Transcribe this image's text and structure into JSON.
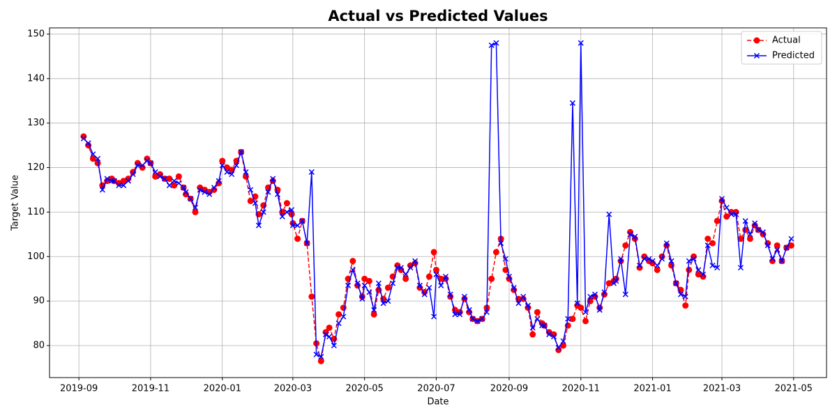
{
  "chart_data": {
    "type": "line",
    "title": "Actual vs Predicted Values",
    "xlabel": "Date",
    "ylabel": "Target Value",
    "x": [
      "2019-09-05",
      "2019-09-09",
      "2019-09-13",
      "2019-09-17",
      "2019-09-21",
      "2019-09-25",
      "2019-09-29",
      "2019-10-01",
      "2019-10-05",
      "2019-10-09",
      "2019-10-13",
      "2019-10-17",
      "2019-10-21",
      "2019-10-25",
      "2019-10-29",
      "2019-11-01",
      "2019-11-05",
      "2019-11-09",
      "2019-11-13",
      "2019-11-17",
      "2019-11-21",
      "2019-11-25",
      "2019-11-29",
      "2019-12-01",
      "2019-12-05",
      "2019-12-09",
      "2019-12-13",
      "2019-12-17",
      "2019-12-21",
      "2019-12-25",
      "2019-12-29",
      "2020-01-01",
      "2020-01-05",
      "2020-01-09",
      "2020-01-13",
      "2020-01-17",
      "2020-01-21",
      "2020-01-25",
      "2020-01-29",
      "2020-02-01",
      "2020-02-05",
      "2020-02-09",
      "2020-02-13",
      "2020-02-17",
      "2020-02-21",
      "2020-02-25",
      "2020-02-29",
      "2020-03-01",
      "2020-03-05",
      "2020-03-09",
      "2020-03-13",
      "2020-03-17",
      "2020-03-21",
      "2020-03-25",
      "2020-03-29",
      "2020-04-01",
      "2020-04-05",
      "2020-04-09",
      "2020-04-13",
      "2020-04-17",
      "2020-04-21",
      "2020-04-25",
      "2020-04-29",
      "2020-05-01",
      "2020-05-05",
      "2020-05-09",
      "2020-05-13",
      "2020-05-17",
      "2020-05-21",
      "2020-05-25",
      "2020-05-29",
      "2020-06-01",
      "2020-06-05",
      "2020-06-09",
      "2020-06-13",
      "2020-06-17",
      "2020-06-21",
      "2020-06-25",
      "2020-06-29",
      "2020-07-01",
      "2020-07-05",
      "2020-07-09",
      "2020-07-13",
      "2020-07-17",
      "2020-07-21",
      "2020-07-25",
      "2020-07-29",
      "2020-08-01",
      "2020-08-05",
      "2020-08-09",
      "2020-08-13",
      "2020-08-17",
      "2020-08-21",
      "2020-08-25",
      "2020-08-29",
      "2020-09-01",
      "2020-09-05",
      "2020-09-09",
      "2020-09-13",
      "2020-09-17",
      "2020-09-21",
      "2020-09-25",
      "2020-09-29",
      "2020-10-01",
      "2020-10-05",
      "2020-10-09",
      "2020-10-13",
      "2020-10-17",
      "2020-10-21",
      "2020-10-25",
      "2020-10-29",
      "2020-11-01",
      "2020-11-05",
      "2020-11-09",
      "2020-11-13",
      "2020-11-17",
      "2020-11-21",
      "2020-11-25",
      "2020-11-29",
      "2020-12-01",
      "2020-12-05",
      "2020-12-09",
      "2020-12-13",
      "2020-12-17",
      "2020-12-21",
      "2020-12-25",
      "2020-12-29",
      "2021-01-01",
      "2021-01-05",
      "2021-01-09",
      "2021-01-13",
      "2021-01-17",
      "2021-01-21",
      "2021-01-25",
      "2021-01-29",
      "2021-02-01",
      "2021-02-05",
      "2021-02-09",
      "2021-02-13",
      "2021-02-17",
      "2021-02-21",
      "2021-02-25",
      "2021-03-01",
      "2021-03-05",
      "2021-03-09",
      "2021-03-13",
      "2021-03-17",
      "2021-03-21",
      "2021-03-25",
      "2021-03-29",
      "2021-04-01",
      "2021-04-05",
      "2021-04-09",
      "2021-04-13",
      "2021-04-17",
      "2021-04-21",
      "2021-04-25",
      "2021-04-29"
    ],
    "series": [
      {
        "name": "Actual",
        "color": "#ff0000",
        "marker": "o",
        "linestyle": "dashed",
        "values": [
          127,
          125,
          122,
          121,
          116,
          117,
          117.5,
          117,
          116.5,
          117,
          117.5,
          119,
          121,
          120,
          122,
          121,
          118,
          118.5,
          117.5,
          117.5,
          116,
          118,
          115.5,
          114,
          113,
          110,
          115.5,
          115,
          114.5,
          115,
          116.5,
          121.5,
          120,
          119.5,
          121.5,
          123.5,
          118,
          112.5,
          113.5,
          109.5,
          111.5,
          115.5,
          117,
          115,
          110,
          112,
          109.5,
          107.5,
          104,
          108,
          103,
          91,
          80.5,
          76.5,
          83,
          84,
          81.5,
          87,
          88.5,
          95,
          99,
          93.5,
          91,
          95,
          94.5,
          87,
          92.5,
          90.5,
          93,
          95.5,
          98,
          97,
          95,
          98,
          98.5,
          93,
          92,
          95.5,
          101,
          97,
          95,
          95,
          91,
          88,
          87.5,
          90.5,
          87.5,
          86,
          85.5,
          86,
          88.5,
          95,
          101,
          104,
          97,
          95,
          92.5,
          90.5,
          90.5,
          88.5,
          82.5,
          87.5,
          85,
          84.5,
          83,
          82.5,
          79,
          80,
          84.5,
          86,
          89,
          88.5,
          85.5,
          90,
          91,
          88.5,
          91.5,
          94,
          94.5,
          95,
          99,
          102.5,
          105.5,
          104,
          97.5,
          100,
          99,
          98.5,
          97,
          100,
          102.5,
          98,
          94,
          92.5,
          89,
          97,
          100,
          96,
          95.5,
          104,
          103,
          108,
          112.5,
          109,
          110,
          110,
          104,
          106,
          104,
          107,
          106,
          105,
          103,
          99,
          102.5,
          99,
          102,
          102.5
        ]
      },
      {
        "name": "Predicted",
        "color": "#0000ff",
        "marker": "x",
        "linestyle": "solid",
        "values": [
          126.5,
          125.5,
          123,
          122,
          115,
          117.5,
          117,
          117,
          116,
          116,
          117,
          118.5,
          120.5,
          120.5,
          121.5,
          121,
          119,
          118,
          117.5,
          116,
          117,
          116.5,
          115.5,
          114.5,
          113,
          111,
          115,
          114.5,
          114,
          115.5,
          117,
          120.5,
          119,
          118.5,
          120.5,
          123.5,
          119,
          115,
          112,
          107,
          110,
          114.5,
          117.5,
          114,
          109,
          110,
          110.5,
          107,
          107,
          108,
          103,
          119,
          78,
          77.5,
          82.5,
          82,
          80,
          85,
          86.5,
          93.5,
          97,
          94,
          90.5,
          93.5,
          92,
          88,
          94,
          89.5,
          90,
          94,
          97.5,
          97.5,
          96,
          97.5,
          99,
          93.5,
          91.5,
          93,
          86.5,
          96,
          93.5,
          95.5,
          91.5,
          87,
          87,
          91,
          88,
          86,
          85.5,
          86,
          87.5,
          147.5,
          148,
          103,
          99.5,
          95.5,
          93,
          89.5,
          91,
          89,
          84,
          86,
          84.5,
          84.5,
          82.5,
          82,
          79.5,
          81,
          86,
          134.5,
          89.5,
          148,
          87.5,
          91,
          91.5,
          88,
          92,
          109.5,
          94,
          94.5,
          99.5,
          91.5,
          105,
          104.5,
          98,
          99.5,
          99.5,
          99,
          98,
          99.5,
          103,
          99,
          94,
          91.5,
          91,
          99,
          99.5,
          97,
          96,
          102.5,
          98,
          97.5,
          113,
          111,
          109.5,
          109.5,
          97.5,
          108,
          105,
          107.5,
          106,
          105.5,
          102.5,
          99.5,
          101.5,
          99,
          102,
          104
        ]
      }
    ],
    "xlim": [
      "2019-08-07",
      "2021-05-29"
    ],
    "xticks": [
      "2019-09",
      "2019-11",
      "2020-01",
      "2020-03",
      "2020-05",
      "2020-07",
      "2020-09",
      "2020-11",
      "2021-01",
      "2021-03",
      "2021-05"
    ],
    "ylim": [
      72.8,
      151.4
    ],
    "yticks": [
      80,
      90,
      100,
      110,
      120,
      130,
      140,
      150
    ],
    "grid": true,
    "legend": "upper right"
  }
}
